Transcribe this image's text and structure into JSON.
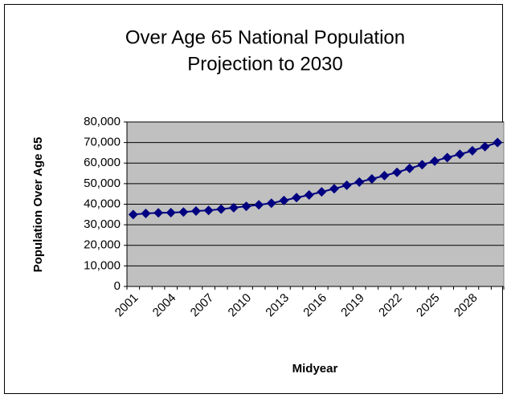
{
  "chart_data": {
    "type": "line",
    "title": [
      "Over Age 65 National Population",
      "Projection to 2030"
    ],
    "x_label": "Midyear",
    "y_label": "Population Over Age 65",
    "categories": [
      "2001",
      null,
      null,
      "2004",
      null,
      null,
      "2007",
      null,
      null,
      "2010",
      null,
      null,
      "2013",
      null,
      null,
      "2016",
      null,
      null,
      "2019",
      null,
      null,
      "2022",
      null,
      null,
      "2025",
      null,
      null,
      "2028",
      null,
      null
    ],
    "series": [
      {
        "name": "Population Over Age 65",
        "color": "#000080",
        "values": [
          35000,
          35500,
          35800,
          35900,
          36200,
          36700,
          37000,
          37600,
          38300,
          39000,
          39700,
          40500,
          41800,
          43200,
          44500,
          46000,
          47500,
          49200,
          50800,
          52300,
          53900,
          55500,
          57400,
          59200,
          61000,
          62700,
          64300,
          66000,
          68000,
          70000
        ]
      }
    ],
    "ylim": [
      0,
      80000
    ],
    "yticks": [
      0,
      {
        "value": 10000,
        "label": "10,000"
      },
      {
        "value": 20000,
        "label": "20,000"
      },
      {
        "value": 30000,
        "label": "30,000"
      },
      {
        "value": 40000,
        "label": "40,000"
      },
      {
        "value": 50000,
        "label": "50,000"
      },
      {
        "value": 60000,
        "label": "60,000"
      },
      {
        "value": 70000,
        "label": "70,000"
      },
      {
        "value": 80000,
        "label": "80,000"
      }
    ],
    "grid": true,
    "plot_background": "#c0c0c0"
  }
}
